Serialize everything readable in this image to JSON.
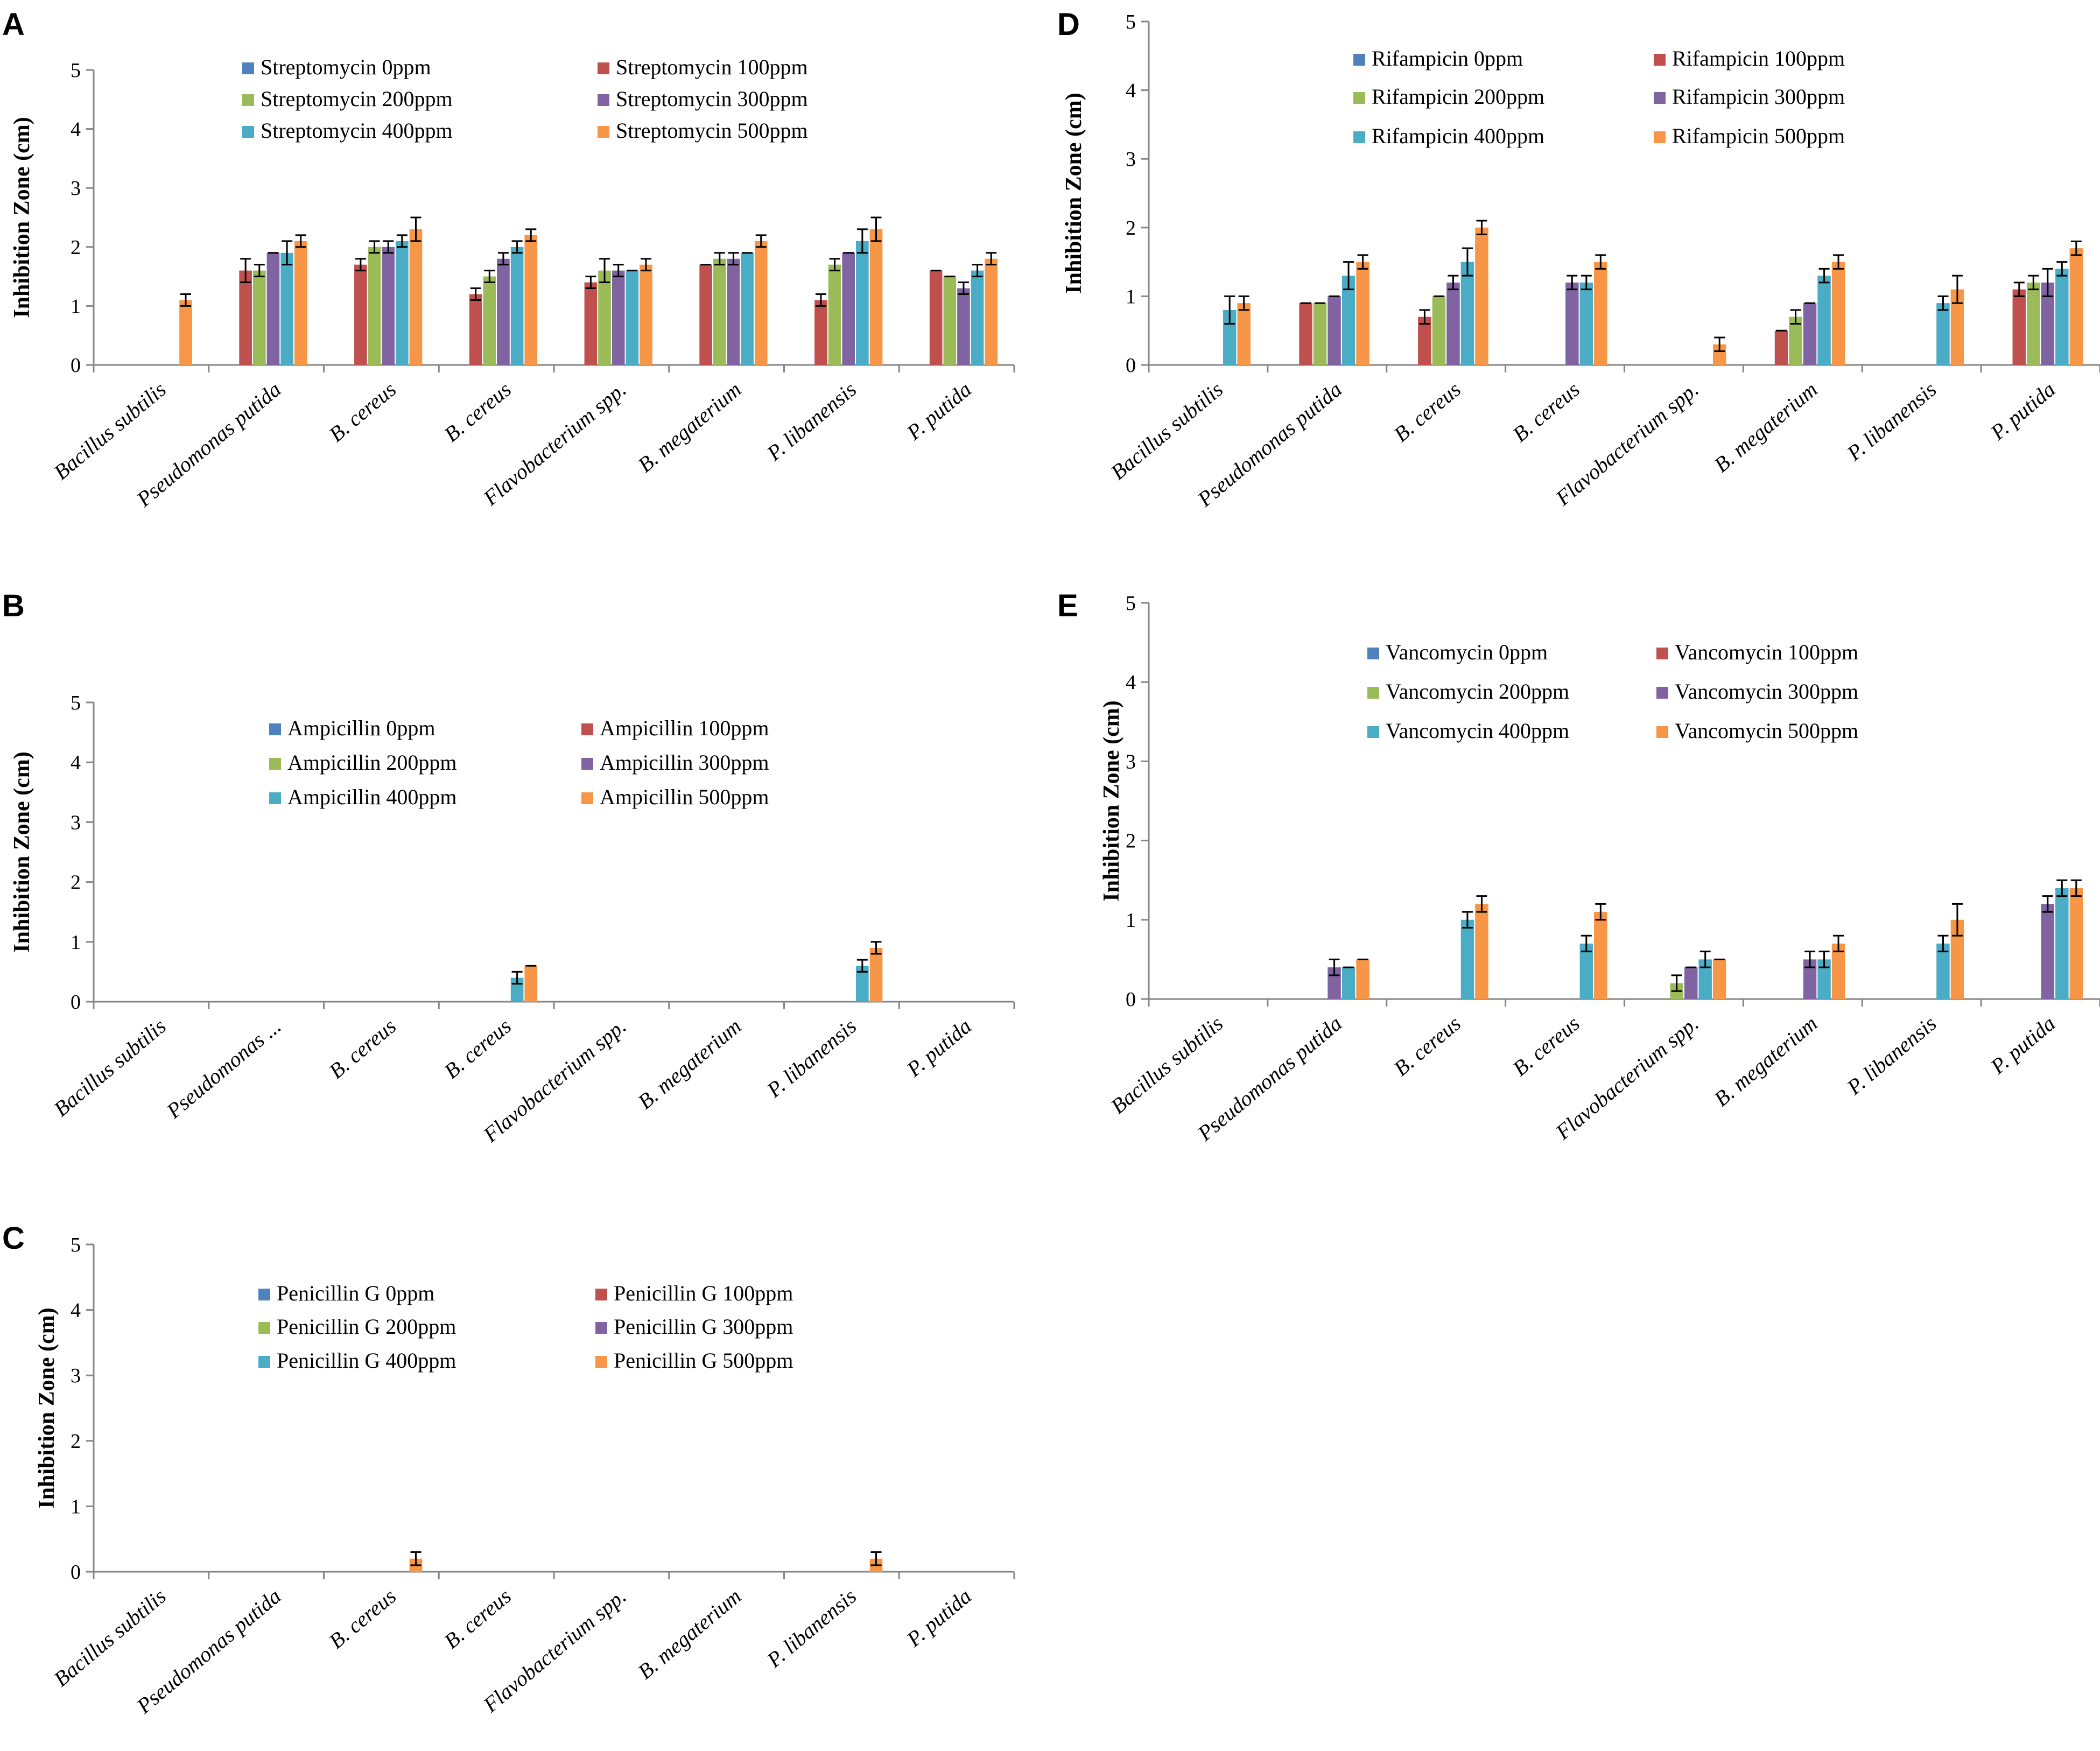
{
  "colors": [
    "#4f81bd",
    "#c0504d",
    "#9bbb59",
    "#8064a2",
    "#4bacc6",
    "#f79646"
  ],
  "chart_data": [
    {
      "panel": "A",
      "type": "bar",
      "ylabel": "Inhibition Zone (cm)",
      "ylim": [
        0,
        5
      ],
      "yticks": [
        "0",
        "1",
        "2",
        "3",
        "4",
        "5"
      ],
      "categories": [
        "Bacillus subtilis",
        "Pseudomonas putida",
        "B. cereus",
        "B. cereus",
        "Flavobacterium spp.",
        "B. megaterium",
        "P. libanensis",
        "P. putida"
      ],
      "series": [
        {
          "name": "Streptomycin 0ppm",
          "values": [
            0,
            0,
            0,
            0,
            0,
            0,
            0,
            0
          ],
          "errors": [
            0,
            0,
            0,
            0,
            0,
            0,
            0,
            0
          ]
        },
        {
          "name": "Streptomycin 100ppm",
          "values": [
            0,
            1.6,
            1.7,
            1.2,
            1.4,
            1.7,
            1.1,
            1.6
          ],
          "errors": [
            0,
            0.2,
            0.1,
            0.1,
            0.1,
            0,
            0.1,
            0
          ]
        },
        {
          "name": "Streptomycin 200ppm",
          "values": [
            0,
            1.6,
            2.0,
            1.5,
            1.6,
            1.8,
            1.7,
            1.5
          ],
          "errors": [
            0,
            0.1,
            0.1,
            0.1,
            0.2,
            0.1,
            0.1,
            0
          ]
        },
        {
          "name": "Streptomycin 300ppm",
          "values": [
            0,
            1.9,
            2.0,
            1.8,
            1.6,
            1.8,
            1.9,
            1.3
          ],
          "errors": [
            0,
            0,
            0.1,
            0.1,
            0.1,
            0.1,
            0,
            0.1
          ]
        },
        {
          "name": "Streptomycin 400ppm",
          "values": [
            0,
            1.9,
            2.1,
            2.0,
            1.6,
            1.9,
            2.1,
            1.6
          ],
          "errors": [
            0,
            0.2,
            0.1,
            0.1,
            0,
            0,
            0.2,
            0.1
          ]
        },
        {
          "name": "Streptomycin 500ppm",
          "values": [
            1.1,
            2.1,
            2.3,
            2.2,
            1.7,
            2.1,
            2.3,
            1.8
          ],
          "errors": [
            0.1,
            0.1,
            0.2,
            0.1,
            0.1,
            0.1,
            0.2,
            0.1
          ]
        }
      ]
    },
    {
      "panel": "B",
      "type": "bar",
      "ylabel": "Inhibition Zone (cm)",
      "ylim": [
        0,
        5
      ],
      "yticks": [
        "0",
        "1",
        "2",
        "3",
        "4",
        "5"
      ],
      "categories": [
        "Bacillus subtilis",
        "Pseudomonas ...",
        "B. cereus",
        "B. cereus",
        "Flavobacterium spp.",
        "B. megaterium",
        "P. libanensis",
        "P. putida"
      ],
      "series": [
        {
          "name": "Ampicillin 0ppm",
          "values": [
            0,
            0,
            0,
            0,
            0,
            0,
            0,
            0
          ],
          "errors": [
            0,
            0,
            0,
            0,
            0,
            0,
            0,
            0
          ]
        },
        {
          "name": "Ampicillin 100ppm",
          "values": [
            0,
            0,
            0,
            0,
            0,
            0,
            0,
            0
          ],
          "errors": [
            0,
            0,
            0,
            0,
            0,
            0,
            0,
            0
          ]
        },
        {
          "name": "Ampicillin 200ppm",
          "values": [
            0,
            0,
            0,
            0,
            0,
            0,
            0,
            0
          ],
          "errors": [
            0,
            0,
            0,
            0,
            0,
            0,
            0,
            0
          ]
        },
        {
          "name": "Ampicillin 300ppm",
          "values": [
            0,
            0,
            0,
            0,
            0,
            0,
            0,
            0
          ],
          "errors": [
            0,
            0,
            0,
            0,
            0,
            0,
            0,
            0
          ]
        },
        {
          "name": "Ampicillin 400ppm",
          "values": [
            0,
            0,
            0,
            0.4,
            0,
            0,
            0.6,
            0
          ],
          "errors": [
            0,
            0,
            0,
            0.1,
            0,
            0,
            0.1,
            0
          ]
        },
        {
          "name": "Ampicillin 500ppm",
          "values": [
            0,
            0,
            0,
            0.6,
            0,
            0,
            0.9,
            0
          ],
          "errors": [
            0,
            0,
            0,
            0,
            0,
            0,
            0.1,
            0
          ]
        }
      ]
    },
    {
      "panel": "C",
      "type": "bar",
      "ylabel": "Inhibition Zone (cm)",
      "ylim": [
        0,
        5
      ],
      "yticks": [
        "0",
        "1",
        "2",
        "3",
        "4",
        "5"
      ],
      "categories": [
        "Bacillus subtilis",
        "Pseudomonas putida",
        "B. cereus",
        "B. cereus",
        "Flavobacterium spp.",
        "B. megaterium",
        "P. libanensis",
        "P. putida"
      ],
      "series": [
        {
          "name": "Penicillin G 0ppm",
          "values": [
            0,
            0,
            0,
            0,
            0,
            0,
            0,
            0
          ],
          "errors": [
            0,
            0,
            0,
            0,
            0,
            0,
            0,
            0
          ]
        },
        {
          "name": "Penicillin G 100ppm",
          "values": [
            0,
            0,
            0,
            0,
            0,
            0,
            0,
            0
          ],
          "errors": [
            0,
            0,
            0,
            0,
            0,
            0,
            0,
            0
          ]
        },
        {
          "name": "Penicillin G 200ppm",
          "values": [
            0,
            0,
            0,
            0,
            0,
            0,
            0,
            0
          ],
          "errors": [
            0,
            0,
            0,
            0,
            0,
            0,
            0,
            0
          ]
        },
        {
          "name": "Penicillin G 300ppm",
          "values": [
            0,
            0,
            0,
            0,
            0,
            0,
            0,
            0
          ],
          "errors": [
            0,
            0,
            0,
            0,
            0,
            0,
            0,
            0
          ]
        },
        {
          "name": "Penicillin G 400ppm",
          "values": [
            0,
            0,
            0,
            0,
            0,
            0,
            0,
            0
          ],
          "errors": [
            0,
            0,
            0,
            0,
            0,
            0,
            0,
            0
          ]
        },
        {
          "name": "Penicillin G 500ppm",
          "values": [
            0,
            0,
            0.2,
            0,
            0,
            0,
            0.2,
            0
          ],
          "errors": [
            0,
            0,
            0.1,
            0,
            0,
            0,
            0.1,
            0
          ]
        }
      ]
    },
    {
      "panel": "D",
      "type": "bar",
      "ylabel": "Inhibition Zone (cm)",
      "ylim": [
        0,
        5
      ],
      "yticks": [
        "0",
        "1",
        "2",
        "3",
        "4",
        "5"
      ],
      "categories": [
        "Bacillus subtilis",
        "Pseudomonas putida",
        "B. cereus",
        "B. cereus",
        "Flavobacterium spp.",
        "B. megaterium",
        "P. libanensis",
        "P. putida"
      ],
      "series": [
        {
          "name": "Rifampicin 0ppm",
          "values": [
            0,
            0,
            0,
            0,
            0,
            0,
            0,
            0
          ],
          "errors": [
            0,
            0,
            0,
            0,
            0,
            0,
            0,
            0
          ]
        },
        {
          "name": "Rifampicin 100ppm",
          "values": [
            0,
            0.9,
            0.7,
            0,
            0,
            0.5,
            0,
            1.1
          ],
          "errors": [
            0,
            0,
            0.1,
            0,
            0,
            0,
            0,
            0.1
          ]
        },
        {
          "name": "Rifampicin 200ppm",
          "values": [
            0,
            0.9,
            1.0,
            0,
            0,
            0.7,
            0,
            1.2
          ],
          "errors": [
            0,
            0,
            0,
            0,
            0,
            0.1,
            0,
            0.1
          ]
        },
        {
          "name": "Rifampicin 300ppm",
          "values": [
            0,
            1.0,
            1.2,
            1.2,
            0,
            0.9,
            0,
            1.2
          ],
          "errors": [
            0,
            0,
            0.1,
            0.1,
            0,
            0,
            0,
            0.2
          ]
        },
        {
          "name": "Rifampicin 400ppm",
          "values": [
            0.8,
            1.3,
            1.5,
            1.2,
            0,
            1.3,
            0.9,
            1.4
          ],
          "errors": [
            0.2,
            0.2,
            0.2,
            0.1,
            0,
            0.1,
            0.1,
            0.1
          ]
        },
        {
          "name": "Rifampicin 500ppm",
          "values": [
            0.9,
            1.5,
            2.0,
            1.5,
            0.3,
            1.5,
            1.1,
            1.7
          ],
          "errors": [
            0.1,
            0.1,
            0.1,
            0.1,
            0.1,
            0.1,
            0.2,
            0.1
          ]
        }
      ]
    },
    {
      "panel": "E",
      "type": "bar",
      "ylabel": "Inhibition Zone (cm)",
      "ylim": [
        0,
        5
      ],
      "yticks": [
        "0",
        "1",
        "2",
        "3",
        "4",
        "5"
      ],
      "categories": [
        "Bacillus subtilis",
        "Pseudomonas putida",
        "B. cereus",
        "B. cereus",
        "Flavobacterium spp.",
        "B. megaterium",
        "P. libanensis",
        "P. putida"
      ],
      "series": [
        {
          "name": "Vancomycin 0ppm",
          "values": [
            0,
            0,
            0,
            0,
            0,
            0,
            0,
            0
          ],
          "errors": [
            0,
            0,
            0,
            0,
            0,
            0,
            0,
            0
          ]
        },
        {
          "name": "Vancomycin 100ppm",
          "values": [
            0,
            0,
            0,
            0,
            0,
            0,
            0,
            0
          ],
          "errors": [
            0,
            0,
            0,
            0,
            0,
            0,
            0,
            0
          ]
        },
        {
          "name": "Vancomycin 200ppm",
          "values": [
            0,
            0,
            0,
            0,
            0.2,
            0,
            0,
            0
          ],
          "errors": [
            0,
            0,
            0,
            0,
            0.1,
            0,
            0,
            0
          ]
        },
        {
          "name": "Vancomycin 300ppm",
          "values": [
            0,
            0.4,
            0,
            0,
            0.4,
            0.5,
            0,
            1.2
          ],
          "errors": [
            0,
            0.1,
            0,
            0,
            0,
            0.1,
            0,
            0.1
          ]
        },
        {
          "name": "Vancomycin 400ppm",
          "values": [
            0,
            0.4,
            1.0,
            0.7,
            0.5,
            0.5,
            0.7,
            1.4
          ],
          "errors": [
            0,
            0,
            0.1,
            0.1,
            0.1,
            0.1,
            0.1,
            0.1
          ]
        },
        {
          "name": "Vancomycin 500ppm",
          "values": [
            0,
            0.5,
            1.2,
            1.1,
            0.5,
            0.7,
            1.0,
            1.4
          ],
          "errors": [
            0,
            0,
            0.1,
            0.1,
            0,
            0.1,
            0.2,
            0.1
          ]
        }
      ]
    }
  ]
}
